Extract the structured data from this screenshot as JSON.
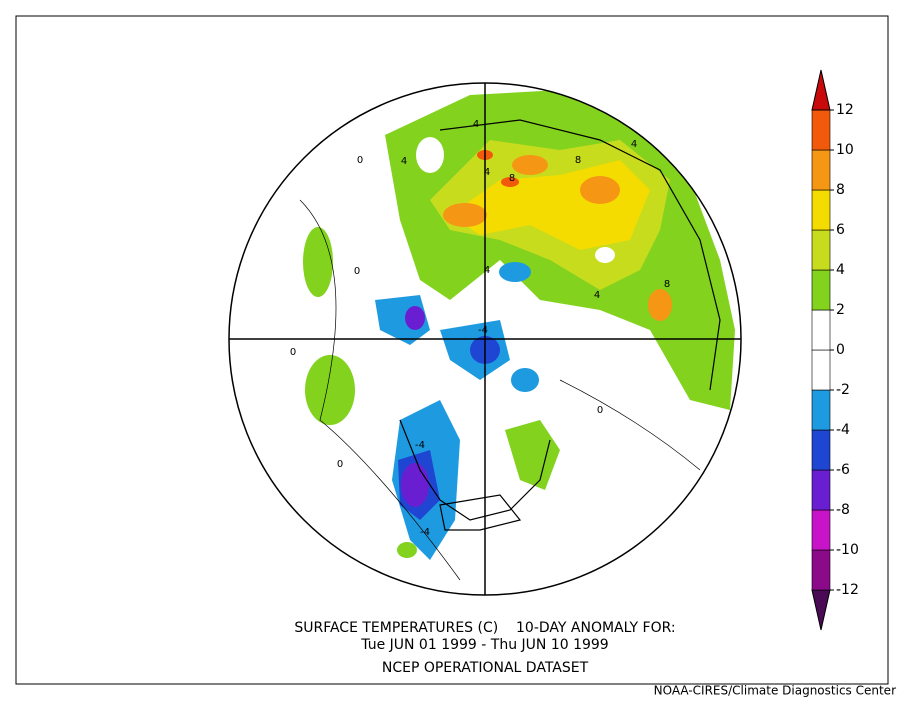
{
  "title_lines": [
    "SURFACE TEMPERATURES (C)    10-DAY ANOMALY FOR:",
    "Tue JUN 01 1999 - Thu JUN 10 1999",
    "NCEP OPERATIONAL DATASET"
  ],
  "credit": "NOAA-CIRES/Climate Diagnostics Center",
  "colorbar": {
    "levels": [
      -12,
      -10,
      -8,
      -6,
      -4,
      -2,
      0,
      2,
      4,
      6,
      8,
      10,
      12
    ],
    "colors": [
      "#4b0a55",
      "#8a0a8a",
      "#c814c8",
      "#6a1ed2",
      "#1e46d2",
      "#1e9be0",
      "#ffffff",
      "#ffffff",
      "#82d21e",
      "#c8dc1e",
      "#f5dc00",
      "#f59614",
      "#f05a0a",
      "#c80a0a"
    ]
  },
  "contour_labels": [
    4,
    4,
    8,
    4,
    8,
    4,
    4,
    4,
    8,
    -4,
    -4,
    -4,
    0,
    0,
    0,
    0,
    0
  ]
}
